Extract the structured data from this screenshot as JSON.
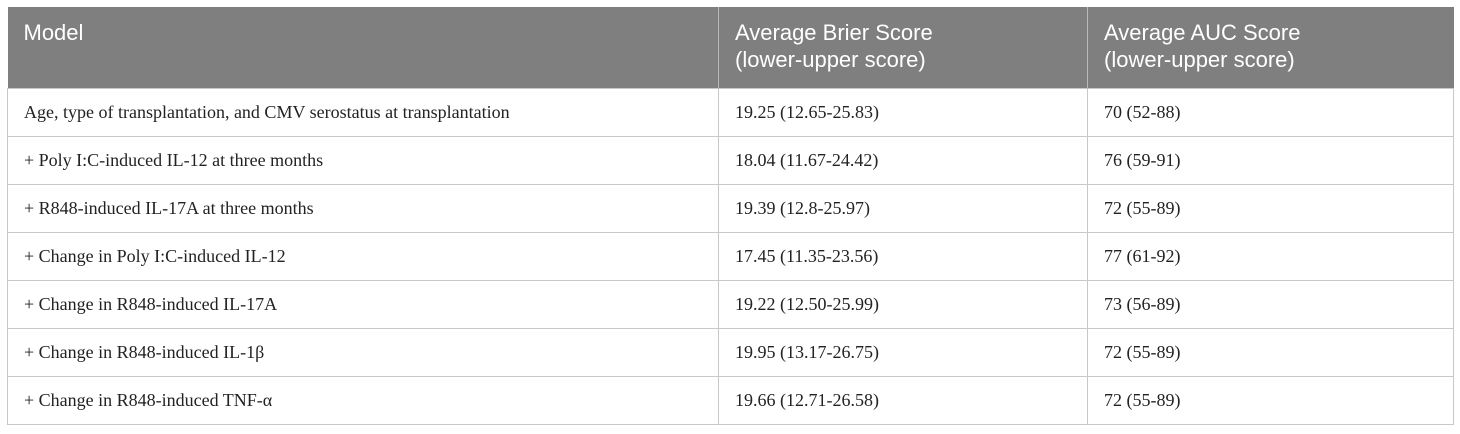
{
  "table": {
    "headers": [
      {
        "line1": "Model",
        "line2": ""
      },
      {
        "line1": "Average Brier Score",
        "line2": "(lower-upper score)"
      },
      {
        "line1": "Average AUC Score",
        "line2": "(lower-upper score)"
      }
    ],
    "rows": [
      {
        "model": "Age, type of transplantation, and CMV serostatus at transplantation",
        "brier": "19.25 (12.65-25.83)",
        "auc": "70 (52-88)"
      },
      {
        "model": "+ Poly I:C-induced IL-12 at three months",
        "brier": "18.04 (11.67-24.42)",
        "auc": "76 (59-91)"
      },
      {
        "model": "+ R848-induced IL-17A at three months",
        "brier": "19.39 (12.8-25.97)",
        "auc": "72 (55-89)"
      },
      {
        "model": "+ Change in Poly I:C-induced IL-12",
        "brier": "17.45 (11.35-23.56)",
        "auc": "77 (61-92)"
      },
      {
        "model": "+ Change in R848-induced IL-17A",
        "brier": "19.22 (12.50-25.99)",
        "auc": "73 (56-89)"
      },
      {
        "model": "+ Change in R848-induced IL-1β",
        "brier": "19.95 (13.17-26.75)",
        "auc": "72 (55-89)"
      },
      {
        "model": "+ Change in R848-induced TNF-α",
        "brier": "19.66 (12.71-26.58)",
        "auc": "72 (55-89)"
      }
    ]
  },
  "colors": {
    "header_background": "#7f7f7f",
    "header_text": "#ffffff",
    "body_text": "#222222",
    "grid_line": "#c8c8c8"
  }
}
